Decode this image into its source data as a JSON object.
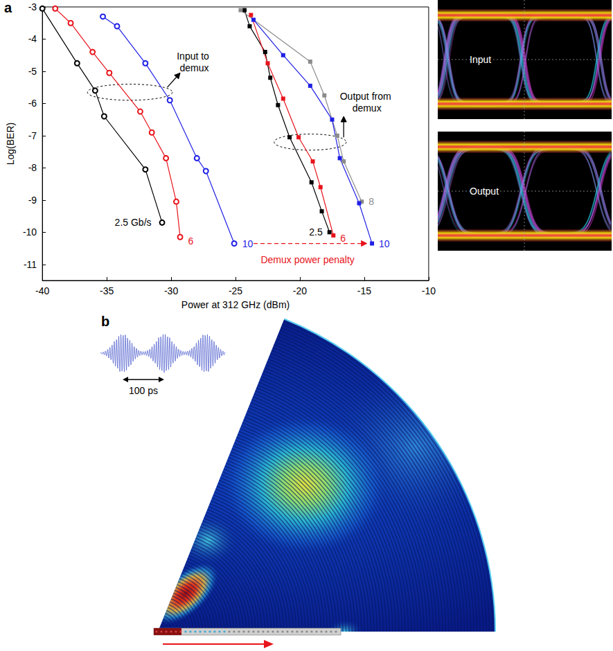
{
  "panel_labels": [
    "a",
    "b"
  ],
  "chart_data": {
    "type": "line",
    "x_label": "Power at 312 GHz (dBm)",
    "y_label": "Log(BER)",
    "xlim": [
      -40,
      -10
    ],
    "xticks": [
      -40,
      -35,
      -30,
      -25,
      -20,
      -15,
      -10
    ],
    "ylim": [
      -11.5,
      -3
    ],
    "yticks": [
      -3,
      -4,
      -5,
      -6,
      -7,
      -8,
      -9,
      -10,
      -11
    ],
    "grid": false,
    "series": [
      {
        "name": "2.5 Gb/s",
        "color": "#000000",
        "marker": "open_circle",
        "x": [
          -40,
          -37.3,
          -35.9,
          -35.2,
          -32.0,
          -30.7
        ],
        "values": [
          -3.05,
          -4.75,
          -5.6,
          -6.4,
          -8.05,
          -9.7
        ]
      },
      {
        "name": "6",
        "color": "#e8141c",
        "marker": "open_circle",
        "x": [
          -39,
          -37.8,
          -36.1,
          -34.8,
          -32.4,
          -31.5,
          -30.4,
          -29.6,
          -29.3
        ],
        "values": [
          -3.05,
          -3.5,
          -4.4,
          -5.05,
          -6.25,
          -6.9,
          -7.7,
          -9.05,
          -10.15
        ]
      },
      {
        "name": "10",
        "color": "#1f1fe6",
        "marker": "open_circle",
        "x": [
          -35.3,
          -34.2,
          -32.0,
          -30.1,
          -28.0,
          -27.3,
          -25.1
        ],
        "values": [
          -3.3,
          -3.6,
          -4.75,
          -5.9,
          -7.7,
          -8.1,
          -10.35
        ]
      },
      {
        "name": "2.5",
        "color": "#000000",
        "marker": "square",
        "x": [
          -24.3,
          -23.9,
          -22.7,
          -22.3,
          -21.7,
          -20.8,
          -19.1,
          -18.3,
          -17.7
        ],
        "values": [
          -3.1,
          -3.6,
          -4.4,
          -5.2,
          -6.05,
          -7.05,
          -8.45,
          -9.35,
          -10.0
        ]
      },
      {
        "name": "6",
        "color": "#e8141c",
        "marker": "square",
        "x": [
          -23.8,
          -22.5,
          -21.3,
          -20.1,
          -19.0,
          -18.4,
          -17.4
        ],
        "values": [
          -3.25,
          -4.75,
          -5.85,
          -7.05,
          -7.8,
          -8.6,
          -10.1
        ]
      },
      {
        "name": "8",
        "color": "#8c8c8c",
        "marker": "square",
        "x": [
          -24.6,
          -19.2,
          -18.1,
          -17.1,
          -16.6,
          -15.2
        ],
        "values": [
          -3.1,
          -4.7,
          -5.75,
          -7.0,
          -7.8,
          -9.05
        ]
      },
      {
        "name": "10",
        "color": "#1f1fe6",
        "marker": "square",
        "x": [
          -23.6,
          -21.3,
          -19.2,
          -17.5,
          -16.9,
          -15.4,
          -14.4
        ],
        "values": [
          -3.4,
          -4.5,
          -5.45,
          -6.5,
          -7.7,
          -9.1,
          -10.35
        ]
      }
    ],
    "annotations": [
      {
        "text": "Input to demux",
        "x": -28.2,
        "y": -4.72,
        "color": "#000000",
        "ellipse": {
          "cx": -33.2,
          "cy": -5.65,
          "rx": 3.3,
          "ry": 0.25
        },
        "arrow": {
          "from": [
            -30.3,
            -5.5
          ],
          "to": [
            -29.3,
            -5.05
          ]
        }
      },
      {
        "text": "Output from demux",
        "x": -14.8,
        "y": -5.95,
        "color": "#000000",
        "ellipse": {
          "cx": -19.2,
          "cy": -7.2,
          "rx": 2.8,
          "ry": 0.25
        },
        "arrow": {
          "from": [
            -16.6,
            -7.05
          ],
          "to": [
            -16.6,
            -6.4
          ]
        }
      },
      {
        "text": "Demux power penalty",
        "x": -19.4,
        "y": -10.85,
        "color": "#e8141c",
        "line_style": "dashed",
        "arrow": {
          "from": [
            -23.6,
            -10.35
          ],
          "to": [
            -14.8,
            -10.35
          ]
        }
      }
    ]
  },
  "eye_diagrams": [
    "Input",
    "Output"
  ],
  "inset": {
    "label": "100 ps"
  }
}
